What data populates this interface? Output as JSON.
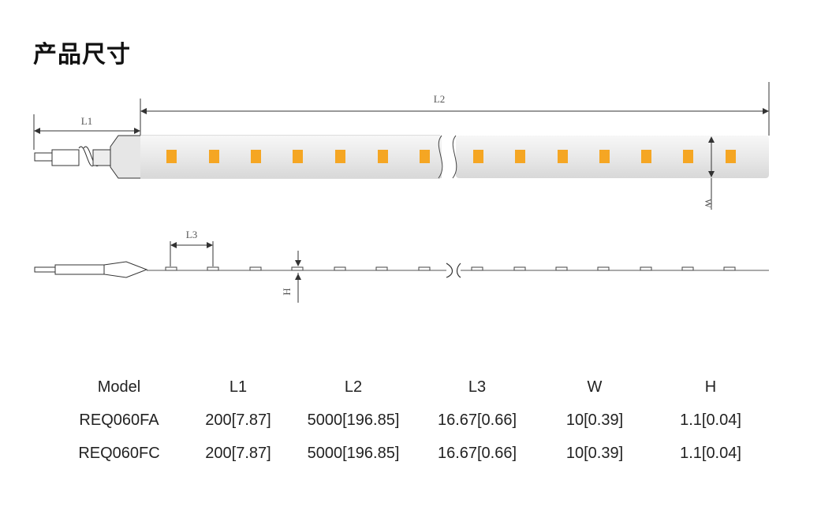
{
  "title": "产品尺寸",
  "diagram": {
    "labels": {
      "l1": "L1",
      "l2": "L2",
      "l3": "L3",
      "w": "W",
      "h": "H"
    },
    "led_color": "#f5a623",
    "strip_color": "#ececec"
  },
  "table": {
    "headers": [
      "Model",
      "L1",
      "L2",
      "L3",
      "W",
      "H"
    ],
    "rows": [
      [
        "REQ060FA",
        "200[7.87]",
        "5000[196.85]",
        "16.67[0.66]",
        "10[0.39]",
        "1.1[0.04]"
      ],
      [
        "REQ060FC",
        "200[7.87]",
        "5000[196.85]",
        "16.67[0.66]",
        "10[0.39]",
        "1.1[0.04]"
      ]
    ]
  }
}
